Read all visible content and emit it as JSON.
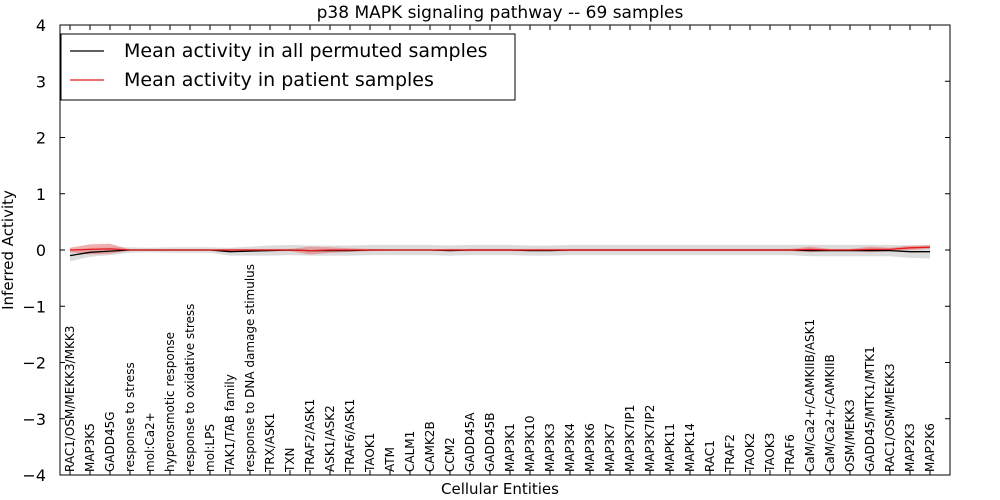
{
  "chart_data": {
    "type": "line",
    "title": "p38 MAPK signaling pathway -- 69 samples",
    "xlabel": "Cellular Entities",
    "ylabel": "Inferred Activity",
    "ylim": [
      -4,
      4
    ],
    "yticks": [
      -4,
      -3,
      -2,
      -1,
      0,
      1,
      2,
      3,
      4
    ],
    "ytick_labels": [
      "−4",
      "−3",
      "−2",
      "−1",
      "0",
      "1",
      "2",
      "3",
      "4"
    ],
    "grid": false,
    "legend_position": "top-left",
    "categories": [
      "RAC1/OSM/MEKK3/MKK3",
      "MAP3K5",
      "GADD45G",
      "response to stress",
      "mol:Ca2+",
      "hyperosmotic response",
      "response to oxidative stress",
      "mol:LPS",
      "TAK1/TAB family",
      "response to DNA damage stimulus",
      "TRX/ASK1",
      "TXN",
      "TRAF2/ASK1",
      "ASK1/ASK2",
      "TRAF6/ASK1",
      "TAOK1",
      "ATM",
      "CALM1",
      "CAMK2B",
      "CCM2",
      "GADD45A",
      "GADD45B",
      "MAP3K1",
      "MAP3K10",
      "MAP3K3",
      "MAP3K4",
      "MAP3K6",
      "MAP3K7",
      "MAP3K7IP1",
      "MAP3K7IP2",
      "MAPK11",
      "MAPK14",
      "RAC1",
      "TRAF2",
      "TAOK2",
      "TAOK3",
      "TRAF6",
      "CaM/Ca2+/CAMKIIB/ASK1",
      "CaM/Ca2+/CAMKIIB",
      "OSM/MEKK3",
      "GADD45/MTK1/MTK1",
      "RAC1/OSM/MEKK3",
      "MAP2K3",
      "MAP2K6"
    ],
    "series": [
      {
        "name": "Mean activity in all permuted samples",
        "color": "#000000",
        "band_color": "#bfbfbf",
        "values": [
          -0.1,
          -0.04,
          -0.02,
          0,
          0,
          0,
          0,
          0,
          -0.03,
          -0.02,
          -0.01,
          0,
          -0.01,
          -0.01,
          -0.01,
          0,
          0,
          0,
          0,
          -0.01,
          0,
          0,
          0,
          -0.01,
          -0.01,
          0,
          0,
          0,
          0,
          0,
          0,
          0,
          0,
          0,
          0,
          0,
          0,
          -0.01,
          -0.01,
          -0.01,
          -0.01,
          -0.01,
          -0.03,
          -0.03
        ],
        "spread": [
          0.1,
          0.08,
          0.07,
          0.05,
          0.04,
          0.05,
          0.05,
          0.05,
          0.07,
          0.08,
          0.09,
          0.09,
          0.09,
          0.09,
          0.09,
          0.09,
          0.09,
          0.09,
          0.09,
          0.09,
          0.09,
          0.09,
          0.09,
          0.09,
          0.09,
          0.09,
          0.09,
          0.09,
          0.09,
          0.09,
          0.09,
          0.09,
          0.09,
          0.09,
          0.09,
          0.09,
          0.09,
          0.1,
          0.1,
          0.1,
          0.1,
          0.1,
          0.11,
          0.12
        ]
      },
      {
        "name": "Mean activity in patient samples",
        "color": "#e8191c",
        "band_color": "#e87a7a",
        "values": [
          0,
          0.01,
          0.02,
          0,
          0,
          0,
          0,
          0,
          0,
          0,
          0,
          0,
          -0.01,
          0,
          0,
          0,
          0,
          0,
          0,
          0,
          0,
          0,
          0,
          0,
          0,
          0,
          0,
          0,
          0,
          0,
          0,
          0,
          0,
          0,
          0,
          0,
          0,
          0.01,
          0,
          0,
          0.01,
          0.01,
          0.04,
          0.05
        ],
        "spread": [
          0.04,
          0.09,
          0.09,
          0.01,
          0.01,
          0.01,
          0.01,
          0.01,
          0.02,
          0.02,
          0.02,
          0.02,
          0.07,
          0.05,
          0.03,
          0.02,
          0.01,
          0.01,
          0.01,
          0.02,
          0.02,
          0.02,
          0.02,
          0.02,
          0.02,
          0.02,
          0.02,
          0.02,
          0.02,
          0.02,
          0.02,
          0.02,
          0.02,
          0.02,
          0.02,
          0.02,
          0.02,
          0.05,
          0.02,
          0.02,
          0.05,
          0.03,
          0.04,
          0.03
        ]
      }
    ]
  }
}
